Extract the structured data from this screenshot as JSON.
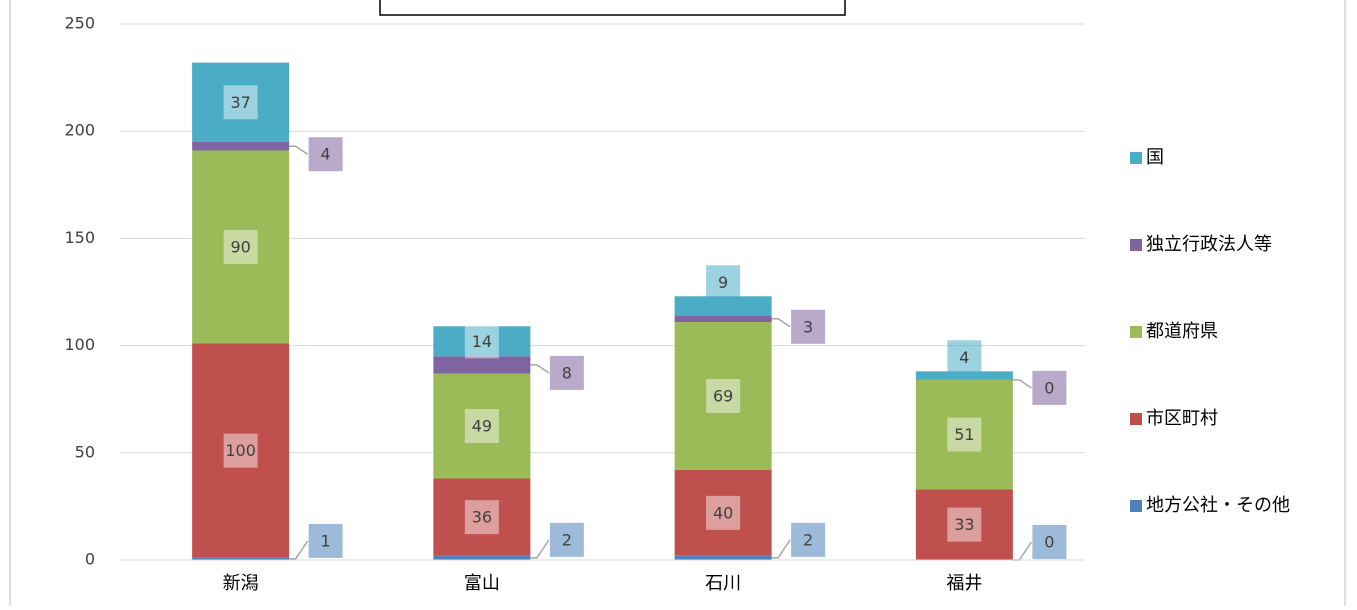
{
  "chart_data": {
    "type": "stacked_bar",
    "categories": [
      "新潟",
      "富山",
      "石川",
      "福井"
    ],
    "series": [
      {
        "name": "地方公社・その他",
        "color": "#4f81bd",
        "values": [
          1,
          2,
          2,
          0
        ]
      },
      {
        "name": "市区町村",
        "color": "#c0504d",
        "values": [
          100,
          36,
          40,
          33
        ]
      },
      {
        "name": "都道府県",
        "color": "#9bbb59",
        "values": [
          90,
          49,
          69,
          51
        ]
      },
      {
        "name": "独立行政法人等",
        "color": "#8064a2",
        "values": [
          4,
          8,
          3,
          0
        ]
      },
      {
        "name": "国",
        "color": "#4bacc6",
        "values": [
          37,
          14,
          9,
          4
        ]
      }
    ],
    "ylim": [
      0,
      250
    ],
    "yticks": [
      0,
      50,
      100,
      150,
      200,
      250
    ],
    "grid": true,
    "legend": "right"
  }
}
